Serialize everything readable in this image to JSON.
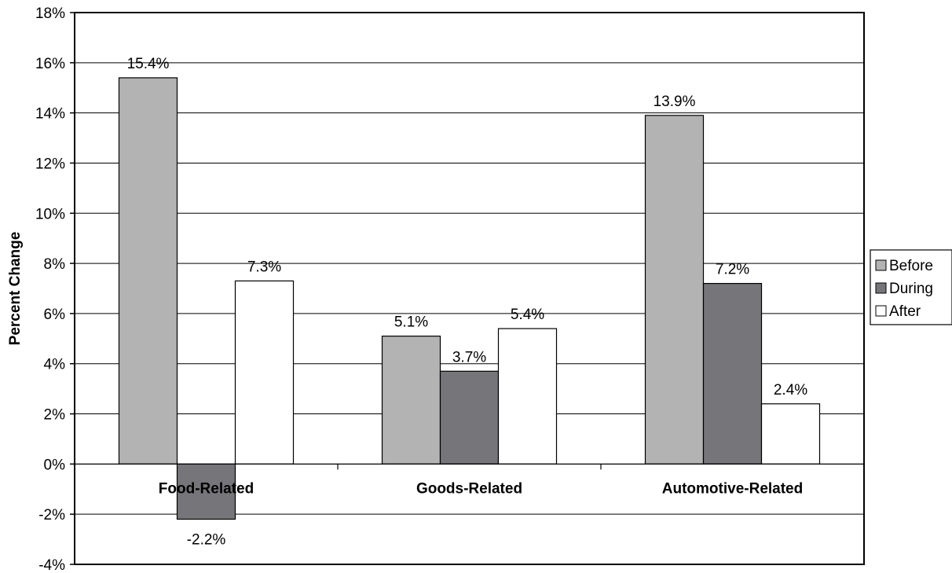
{
  "chart_data": {
    "type": "bar",
    "categories": [
      "Food-Related",
      "Goods-Related",
      "Automotive-Related"
    ],
    "series": [
      {
        "name": "Before",
        "values": [
          15.4,
          5.1,
          13.9
        ],
        "labels": [
          "15.4%",
          "5.1%",
          "13.9%"
        ],
        "color": "#b3b3b3"
      },
      {
        "name": "During",
        "values": [
          -2.2,
          3.7,
          7.2
        ],
        "labels": [
          "-2.2%",
          "3.7%",
          "7.2%"
        ],
        "color": "#76767a"
      },
      {
        "name": "After",
        "values": [
          7.3,
          5.4,
          2.4
        ],
        "labels": [
          "7.3%",
          "5.4%",
          "2.4%"
        ],
        "color": "#ffffff"
      }
    ],
    "ylabel": "Percent Change",
    "xlabel": "",
    "title": "",
    "ylim": [
      -4,
      18
    ],
    "yticks": [
      -4,
      -2,
      0,
      2,
      4,
      6,
      8,
      10,
      12,
      14,
      16,
      18
    ],
    "ytick_labels": [
      "-4%",
      "-2%",
      "0%",
      "2%",
      "4%",
      "6%",
      "8%",
      "10%",
      "12%",
      "14%",
      "16%",
      "18%"
    ],
    "grid": true,
    "legend_position": "right"
  }
}
